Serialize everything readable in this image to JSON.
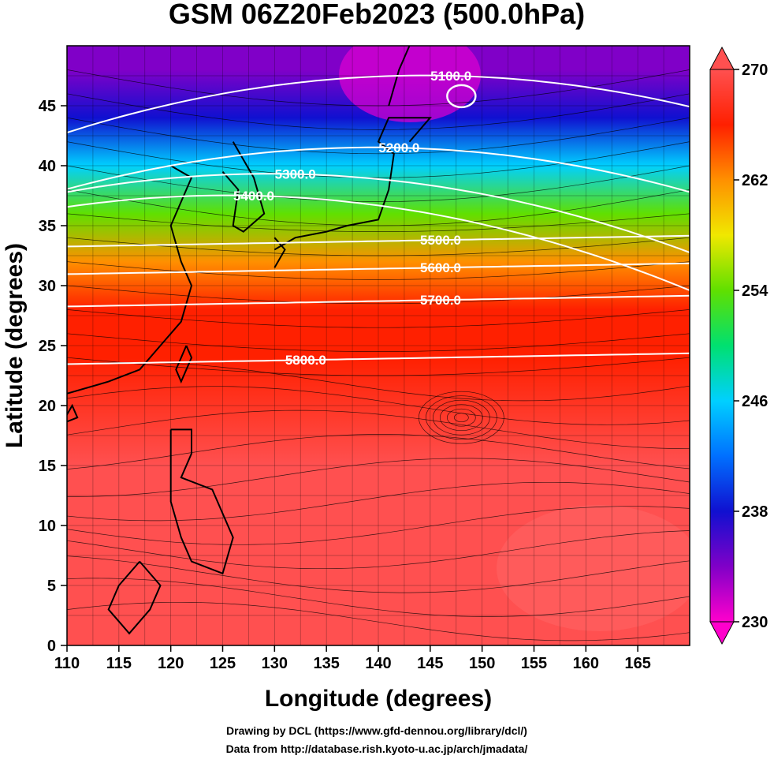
{
  "chart_data": {
    "type": "heatmap",
    "title": "GSM 06Z20Feb2023 (500.0hPa)",
    "xlabel": "Longitude (degrees)",
    "ylabel": "Latitude  (degrees)",
    "xlim": [
      110,
      170
    ],
    "ylim": [
      0,
      50
    ],
    "x_ticks": [
      110,
      115,
      120,
      125,
      130,
      135,
      140,
      145,
      150,
      155,
      160,
      165
    ],
    "y_ticks": [
      0,
      5,
      10,
      15,
      20,
      25,
      30,
      35,
      40,
      45
    ],
    "grid": true,
    "colorbar": {
      "min": 230,
      "max": 270,
      "ticks": [
        230,
        238,
        246,
        254,
        262,
        270
      ],
      "colors": [
        "#ff00cc",
        "#8000c8",
        "#1010d0",
        "#0070ff",
        "#00d0ff",
        "#00e070",
        "#60e000",
        "#f0e800",
        "#ff9000",
        "#ff2000",
        "#ff5050"
      ],
      "placement": "right"
    },
    "temperature_by_latitude": [
      {
        "lat": 48,
        "value": 232
      },
      {
        "lat": 44,
        "value": 238
      },
      {
        "lat": 40,
        "value": 246
      },
      {
        "lat": 36,
        "value": 254
      },
      {
        "lat": 32,
        "value": 260
      },
      {
        "lat": 28,
        "value": 264
      },
      {
        "lat": 24,
        "value": 266
      },
      {
        "lat": 15,
        "value": 268
      },
      {
        "lat": 5,
        "value": 269
      }
    ],
    "contours": [
      {
        "label": "5100.0",
        "label_at": [
          147,
          47.5
        ]
      },
      {
        "label": "5200.0",
        "label_at": [
          142,
          41.5
        ]
      },
      {
        "label": "5300.0",
        "label_at": [
          132,
          39.3
        ]
      },
      {
        "label": "5400.0",
        "label_at": [
          128,
          37.5
        ]
      },
      {
        "label": "5500.0",
        "label_at": [
          146,
          33.8
        ]
      },
      {
        "label": "5600.0",
        "label_at": [
          146,
          31.5
        ]
      },
      {
        "label": "5700.0",
        "label_at": [
          146,
          28.8
        ]
      },
      {
        "label": "5800.0",
        "label_at": [
          133,
          23.8
        ]
      }
    ]
  },
  "credits": {
    "line1": "Drawing by DCL (https://www.gfd-dennou.org/library/dcl/)",
    "line2": "Data from http://database.rish.kyoto-u.ac.jp/arch/jmadata/"
  }
}
